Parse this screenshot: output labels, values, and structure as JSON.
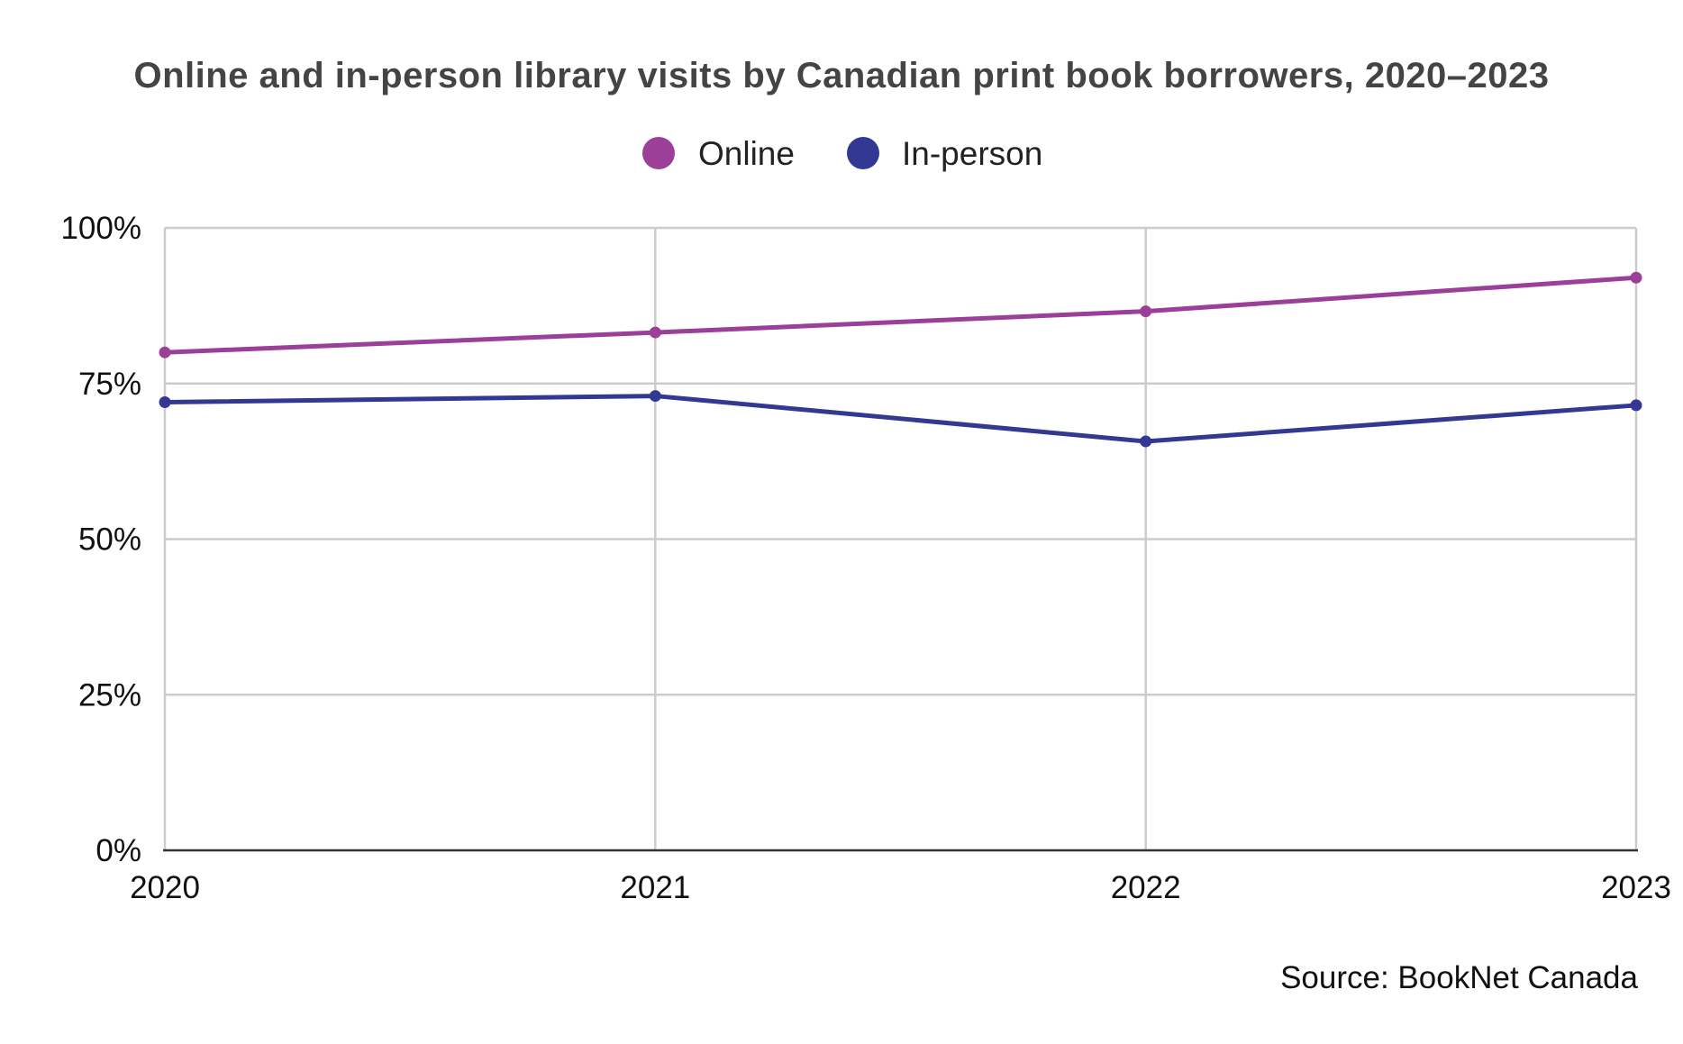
{
  "chart_data": {
    "type": "line",
    "title": "Online and in-person library visits by Canadian print book borrowers, 2020–2023",
    "x": [
      "2020",
      "2021",
      "2022",
      "2023"
    ],
    "series": [
      {
        "name": "Online",
        "values": [
          80,
          83.2,
          86.6,
          92
        ],
        "color": "#9b3f99"
      },
      {
        "name": "In-person",
        "values": [
          72,
          73,
          65.7,
          71.5
        ],
        "color": "#333893"
      }
    ],
    "ylim": [
      0,
      100
    ],
    "y_ticks": [
      0,
      25,
      50,
      75,
      100
    ],
    "y_tick_labels": [
      "0%",
      "25%",
      "50%",
      "75%",
      "100%"
    ],
    "grid": true,
    "legend_position": "top-center",
    "source": "Source: BookNet Canada"
  }
}
